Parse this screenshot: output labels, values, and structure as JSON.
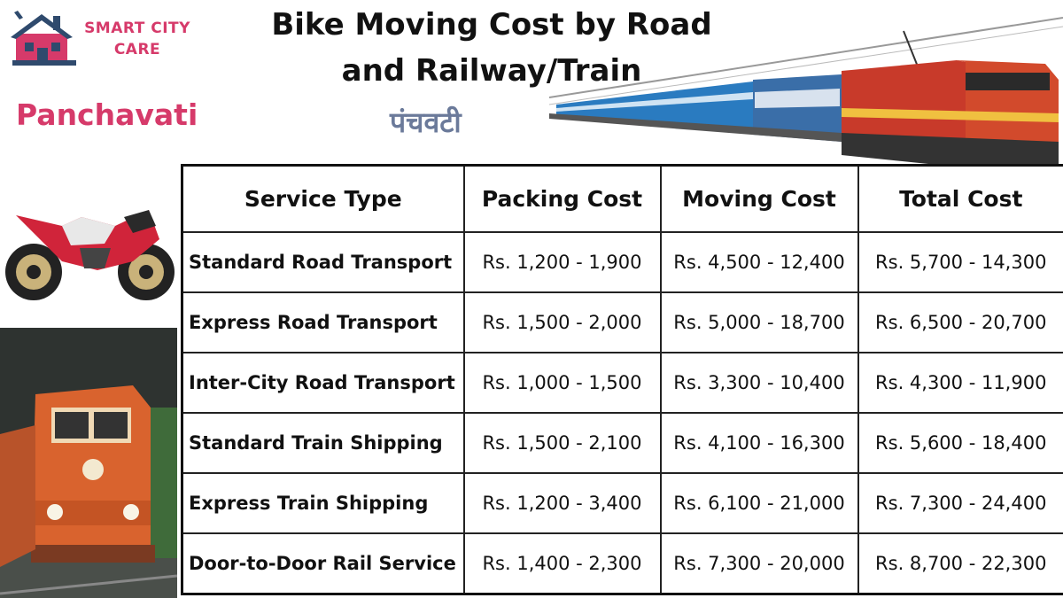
{
  "brand": {
    "line1": "SMART CITY",
    "line2": "CARE"
  },
  "location": "Panchavati",
  "location_hindi": "पंचवटी",
  "title": "Bike Moving Cost by Road and Railway/Train",
  "table": {
    "headers": [
      "Service Type",
      "Packing Cost",
      "Moving Cost",
      "Total Cost"
    ],
    "rows": [
      [
        "Standard Road Transport",
        "Rs. 1,200 - 1,900",
        "Rs. 4,500 - 12,400",
        "Rs. 5,700 - 14,300"
      ],
      [
        "Express Road Transport",
        "Rs. 1,500 - 2,000",
        "Rs. 5,000 - 18,700",
        "Rs. 6,500 - 20,700"
      ],
      [
        "Inter-City Road Transport",
        "Rs. 1,000 - 1,500",
        "Rs. 3,300 - 10,400",
        "Rs. 4,300 - 11,900"
      ],
      [
        "Standard Train Shipping",
        "Rs. 1,500 - 2,100",
        "Rs. 4,100 - 16,300",
        "Rs. 5,600 - 18,400"
      ],
      [
        "Express Train Shipping",
        "Rs. 1,200 - 3,400",
        "Rs. 6,100 - 21,000",
        "Rs. 7,300 - 24,400"
      ],
      [
        "Door-to-Door Rail Service",
        "Rs. 1,400 - 2,300",
        "Rs. 7,300 - 20,000",
        "Rs. 8,700 - 22,300"
      ]
    ]
  },
  "colors": {
    "brand": "#d63a6a",
    "hindi": "#6b7a9a",
    "logo_house": "#2f4a6d"
  },
  "images": [
    "house-logo-icon",
    "electric-train-image",
    "motorcycle-image",
    "diesel-locomotive-image"
  ]
}
